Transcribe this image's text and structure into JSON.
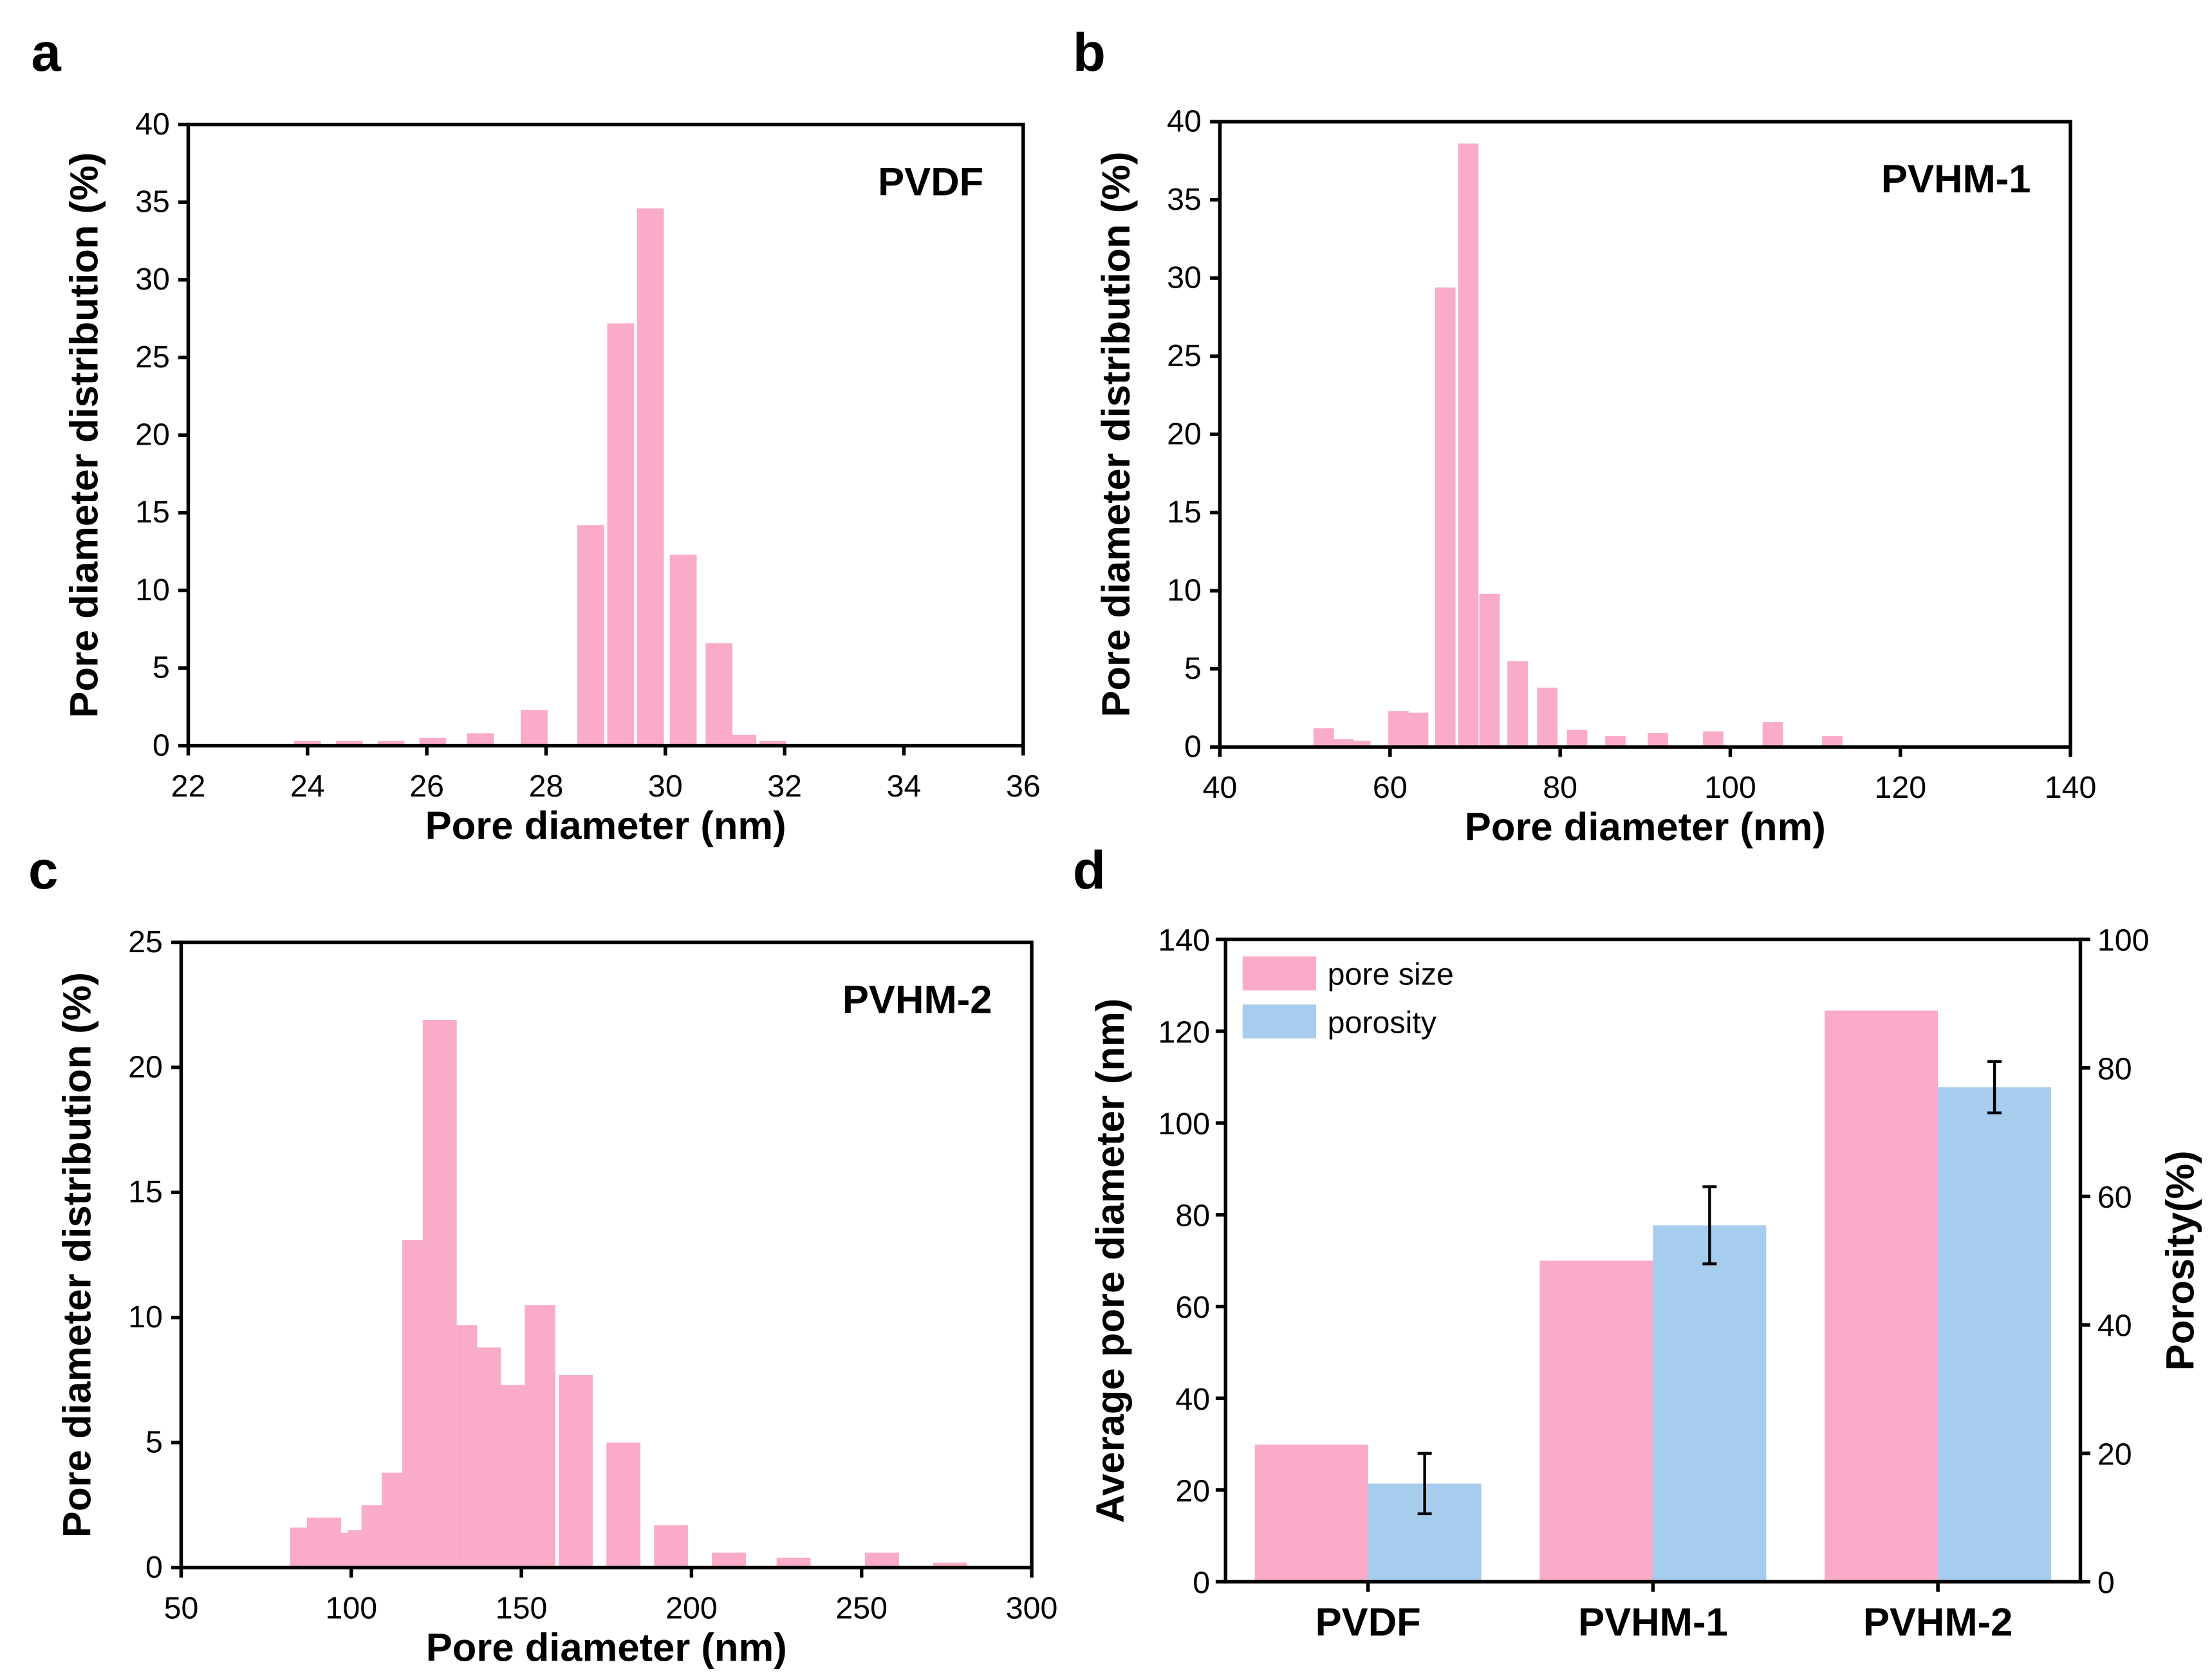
{
  "colors": {
    "pink": "#F9ABC9",
    "blue": "#A6CCEE",
    "axis": "#000000"
  },
  "chart_data": [
    {
      "panel": "a",
      "type": "bar",
      "sample_label": "PVDF",
      "xlabel": "Pore diameter (nm)",
      "ylabel": "Pore diameter distribution (%)",
      "xlim": [
        22,
        36
      ],
      "ylim": [
        0,
        40
      ],
      "xticks": [
        22,
        24,
        26,
        28,
        30,
        32,
        34,
        36
      ],
      "yticks": [
        0,
        5,
        10,
        15,
        20,
        25,
        30,
        35,
        40
      ],
      "bin_width": 0.45,
      "x": [
        24.0,
        24.7,
        25.4,
        26.1,
        26.9,
        27.8,
        28.75,
        29.25,
        29.75,
        30.3,
        30.9,
        31.3,
        31.8,
        32.6,
        33.3,
        34.1,
        34.9,
        35.6
      ],
      "values": [
        0.3,
        0.3,
        0.3,
        0.5,
        0.8,
        2.3,
        14.2,
        27.2,
        34.6,
        12.3,
        6.6,
        0.7,
        0.3,
        0.1,
        0.1,
        0.1,
        0.1,
        0.1
      ]
    },
    {
      "panel": "b",
      "type": "bar",
      "sample_label": "PVHM-1",
      "xlabel": "Pore diameter (nm)",
      "ylabel": "Pore diameter distribution (%)",
      "xlim": [
        40,
        140
      ],
      "ylim": [
        0,
        40
      ],
      "xticks": [
        40,
        60,
        80,
        100,
        120,
        140
      ],
      "yticks": [
        0,
        5,
        10,
        15,
        20,
        25,
        30,
        35,
        40
      ],
      "bin_width": 2.4,
      "x": [
        52.2,
        54.5,
        56.5,
        61.0,
        63.3,
        66.5,
        69.2,
        71.7,
        75.0,
        78.5,
        82.0,
        86.5,
        91.5,
        98.0,
        105.0,
        112.0,
        120.0,
        130.0
      ],
      "values": [
        1.2,
        0.5,
        0.4,
        2.3,
        2.2,
        29.4,
        38.6,
        9.8,
        5.5,
        3.8,
        1.1,
        0.7,
        0.9,
        1.0,
        1.6,
        0.7,
        0.1,
        0.1
      ]
    },
    {
      "panel": "c",
      "type": "bar",
      "sample_label": "PVHM-2",
      "xlabel": "Pore diameter (nm)",
      "ylabel": "Pore diameter distribution (%)",
      "xlim": [
        50,
        300
      ],
      "ylim": [
        0,
        25
      ],
      "xticks": [
        50,
        100,
        150,
        200,
        250,
        300
      ],
      "yticks": [
        0,
        5,
        10,
        15,
        20,
        25
      ],
      "bins": [
        [
          82,
          87
        ],
        [
          87,
          97
        ],
        [
          97,
          99
        ],
        [
          99,
          103
        ],
        [
          103,
          109
        ],
        [
          109,
          115
        ],
        [
          115,
          121
        ],
        [
          121,
          131
        ],
        [
          131,
          137
        ],
        [
          137,
          144
        ],
        [
          144,
          151
        ],
        [
          151,
          160
        ],
        [
          161,
          171
        ],
        [
          175,
          185
        ],
        [
          189,
          199
        ],
        [
          206,
          216
        ],
        [
          225,
          235
        ],
        [
          251,
          261
        ],
        [
          271,
          281
        ]
      ],
      "values": [
        1.6,
        2.0,
        1.4,
        1.5,
        2.5,
        3.8,
        13.1,
        21.9,
        9.7,
        8.8,
        7.3,
        10.5,
        7.7,
        5.0,
        1.7,
        0.6,
        0.4,
        0.6,
        0.2
      ]
    },
    {
      "panel": "d",
      "type": "bar",
      "categories": [
        "PVDF",
        "PVHM-1",
        "PVHM-2"
      ],
      "ylabel": "Average pore diameter (nm)",
      "y2label": "Porosity(%)",
      "ylim": [
        0,
        140
      ],
      "y2lim": [
        0,
        100
      ],
      "yticks": [
        0,
        20,
        40,
        60,
        80,
        100,
        120,
        140
      ],
      "y2ticks": [
        0,
        20,
        40,
        60,
        80,
        100
      ],
      "legend_position": "top-left",
      "series": [
        {
          "name": "pore size",
          "axis": "left",
          "values": [
            29.9,
            70.0,
            124.5
          ]
        },
        {
          "name": "porosity",
          "axis": "right",
          "values": [
            15.3,
            55.5,
            77.0
          ],
          "errors": [
            4.7,
            6.0,
            4.0
          ]
        }
      ]
    }
  ]
}
